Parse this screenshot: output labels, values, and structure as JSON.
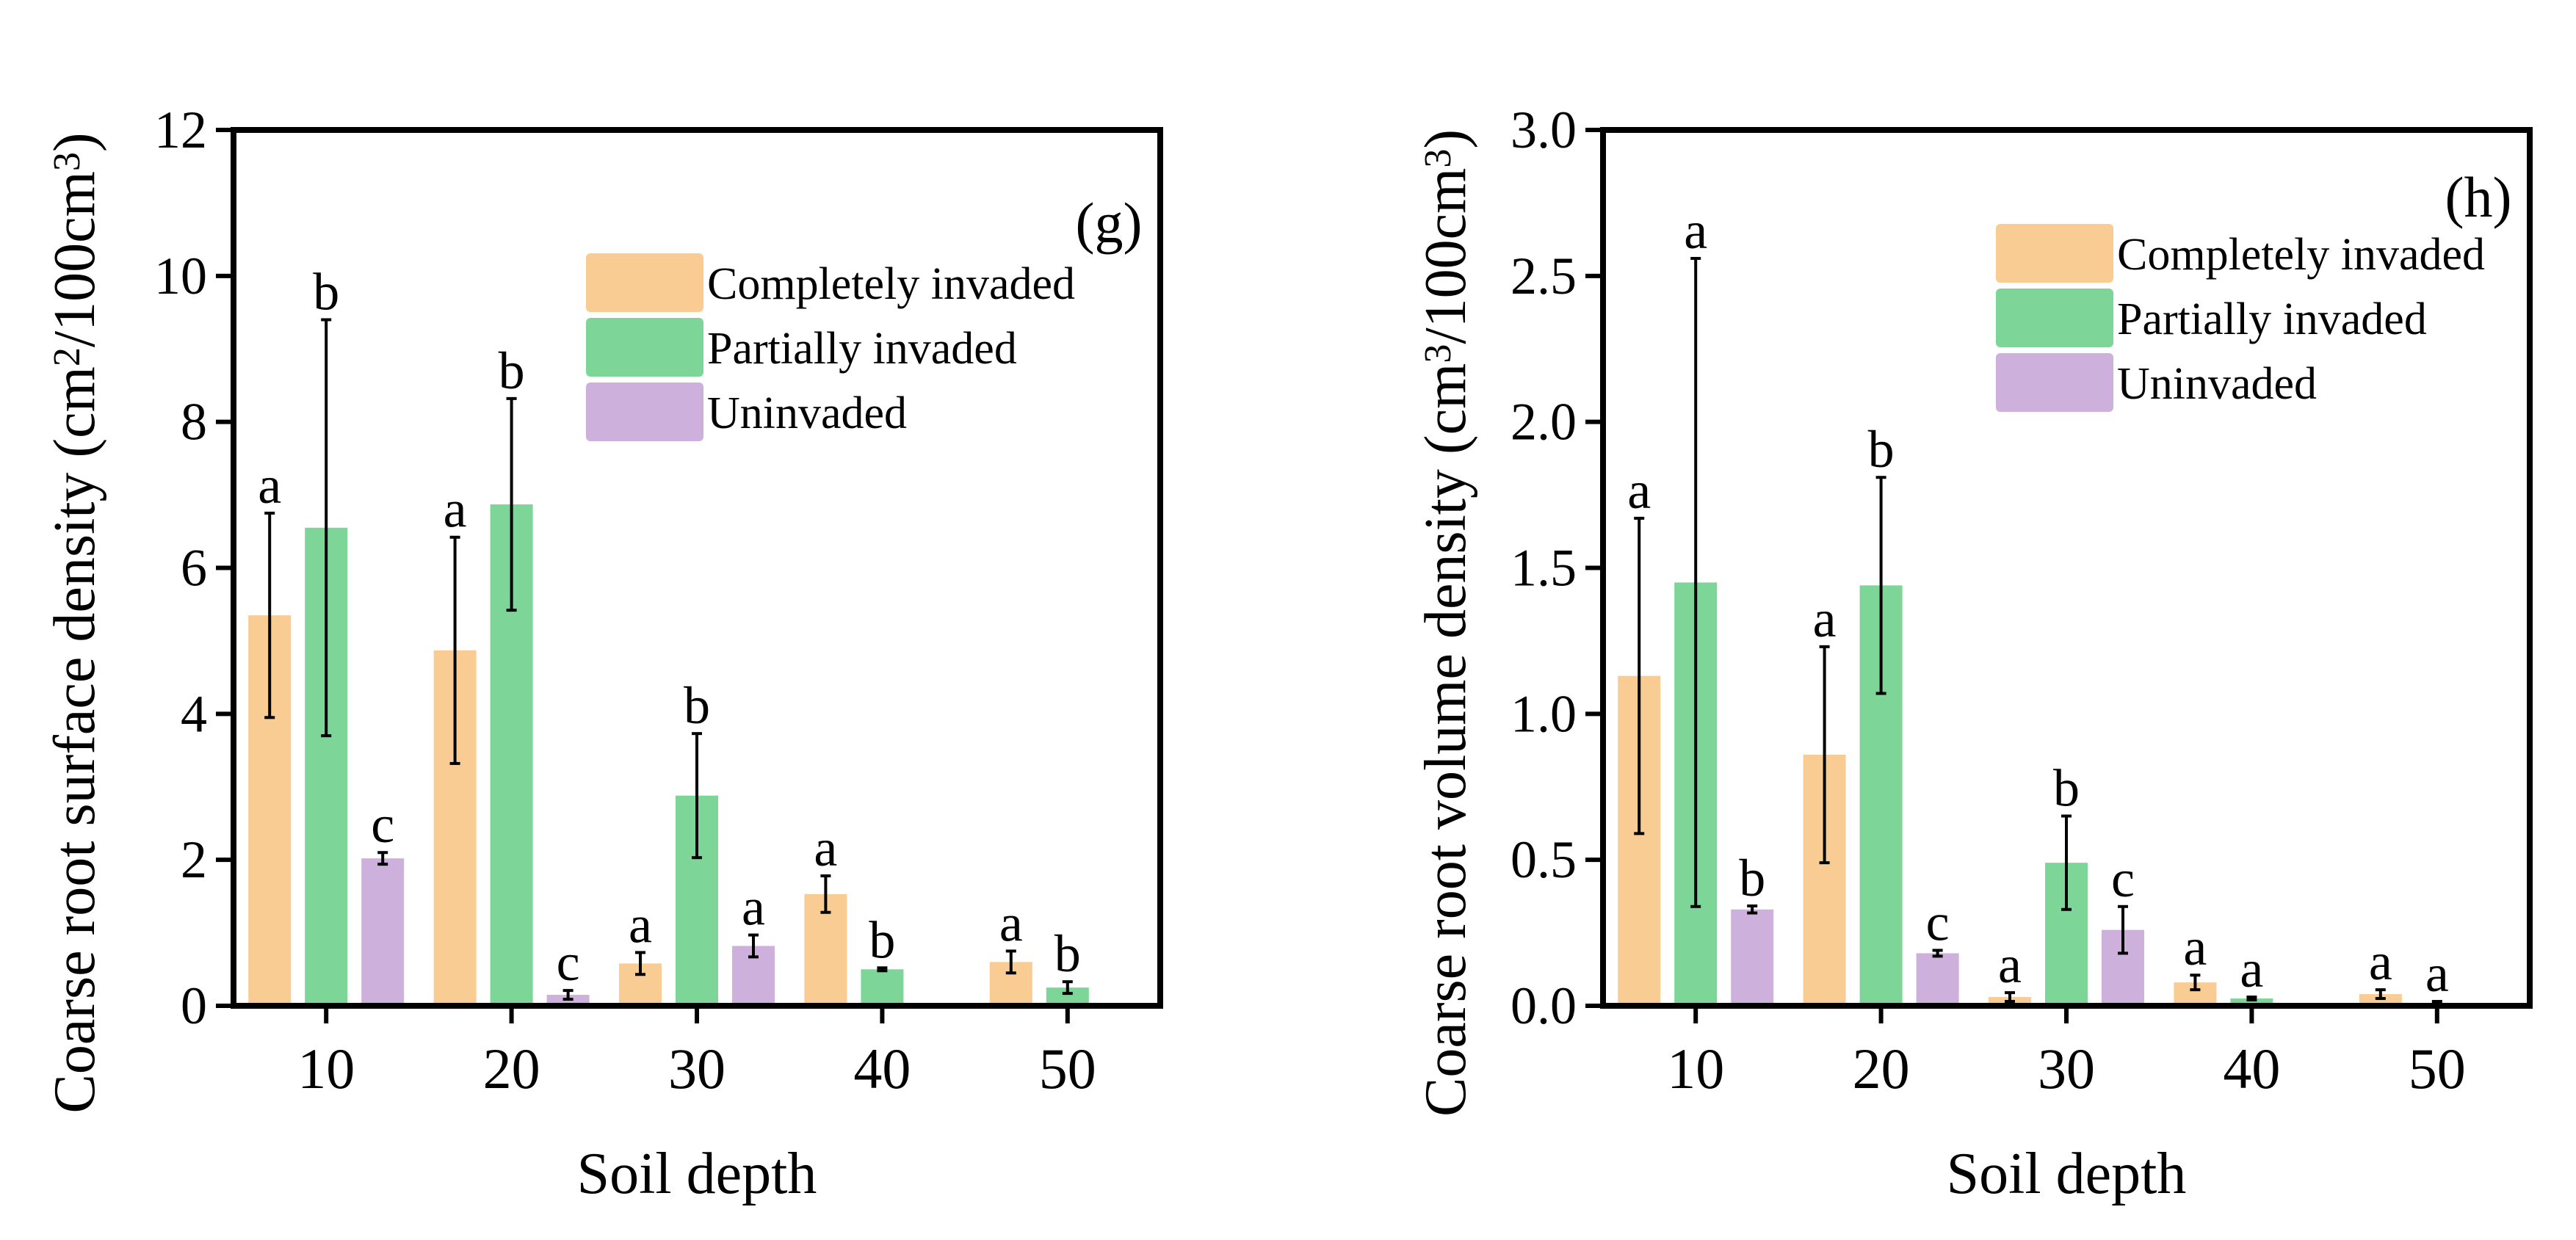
{
  "colors": {
    "completely": "#F9CC93",
    "partially": "#7DD698",
    "uninvaded": "#CDB0DB",
    "axis": "#000000"
  },
  "chart_data": [
    {
      "id": "g",
      "type": "bar",
      "panel_label": "(g)",
      "xlabel": "Soil depth",
      "ylabel_main": "Coarse root surface density (cm",
      "ylabel_sup1": "2",
      "ylabel_mid": "/100cm",
      "ylabel_sup2": "3",
      "ylabel_end": ")",
      "ylim": [
        0,
        12
      ],
      "yticks": [
        0,
        2,
        4,
        6,
        8,
        10,
        12
      ],
      "ytick_labels": [
        "0",
        "2",
        "4",
        "6",
        "8",
        "10",
        "12"
      ],
      "categories": [
        "10",
        "20",
        "30",
        "40",
        "50"
      ],
      "legend": [
        "Completely invaded",
        "Partially invaded",
        "Uninvaded"
      ],
      "legend_position": "top-right",
      "series": [
        {
          "name": "Completely invaded",
          "key": "completely",
          "values": [
            5.35,
            4.87,
            0.58,
            1.53,
            0.6
          ],
          "errors": [
            1.4,
            1.55,
            0.15,
            0.25,
            0.15
          ],
          "letters": [
            "a",
            "a",
            "a",
            "a",
            "a"
          ]
        },
        {
          "name": "Partially invaded",
          "key": "partially",
          "values": [
            6.55,
            6.87,
            2.88,
            0.5,
            0.25
          ],
          "errors": [
            2.85,
            1.45,
            0.85,
            0.02,
            0.08
          ],
          "letters": [
            "b",
            "b",
            "b",
            "b",
            "b"
          ]
        },
        {
          "name": "Uninvaded",
          "key": "uninvaded",
          "values": [
            2.02,
            0.15,
            0.82,
            null,
            null
          ],
          "errors": [
            0.08,
            0.06,
            0.15,
            null,
            null
          ],
          "letters": [
            "c",
            "c",
            "a",
            null,
            null
          ]
        }
      ]
    },
    {
      "id": "h",
      "type": "bar",
      "panel_label": "(h)",
      "xlabel": "Soil depth",
      "ylabel_main": "Coarse root volume density (cm",
      "ylabel_sup1": "3",
      "ylabel_mid": "/100cm",
      "ylabel_sup2": "3",
      "ylabel_end": ")",
      "ylim": [
        0,
        3
      ],
      "yticks": [
        0,
        0.5,
        1,
        1.5,
        2,
        2.5,
        3
      ],
      "ytick_labels": [
        "0.0",
        "0.5",
        "1.0",
        "1.5",
        "2.0",
        "2.5",
        "3.0"
      ],
      "categories": [
        "10",
        "20",
        "30",
        "40",
        "50"
      ],
      "legend": [
        "Completely invaded",
        "Partially invaded",
        "Uninvaded"
      ],
      "legend_position": "top-right",
      "series": [
        {
          "name": "Completely invaded",
          "key": "completely",
          "values": [
            1.13,
            0.86,
            0.03,
            0.08,
            0.04
          ],
          "errors": [
            0.54,
            0.37,
            0.015,
            0.025,
            0.015
          ],
          "letters": [
            "a",
            "a",
            "a",
            "a",
            "a"
          ]
        },
        {
          "name": "Partially invaded",
          "key": "partially",
          "values": [
            1.45,
            1.44,
            0.49,
            0.025,
            0.01
          ],
          "errors": [
            1.11,
            0.37,
            0.16,
            0.005,
            0.005
          ],
          "letters": [
            "a",
            "b",
            "b",
            "a",
            "a"
          ]
        },
        {
          "name": "Uninvaded",
          "key": "uninvaded",
          "values": [
            0.33,
            0.18,
            0.26,
            null,
            null
          ],
          "errors": [
            0.012,
            0.01,
            0.08,
            null,
            null
          ],
          "letters": [
            "b",
            "c",
            "c",
            null,
            null
          ]
        }
      ]
    }
  ]
}
